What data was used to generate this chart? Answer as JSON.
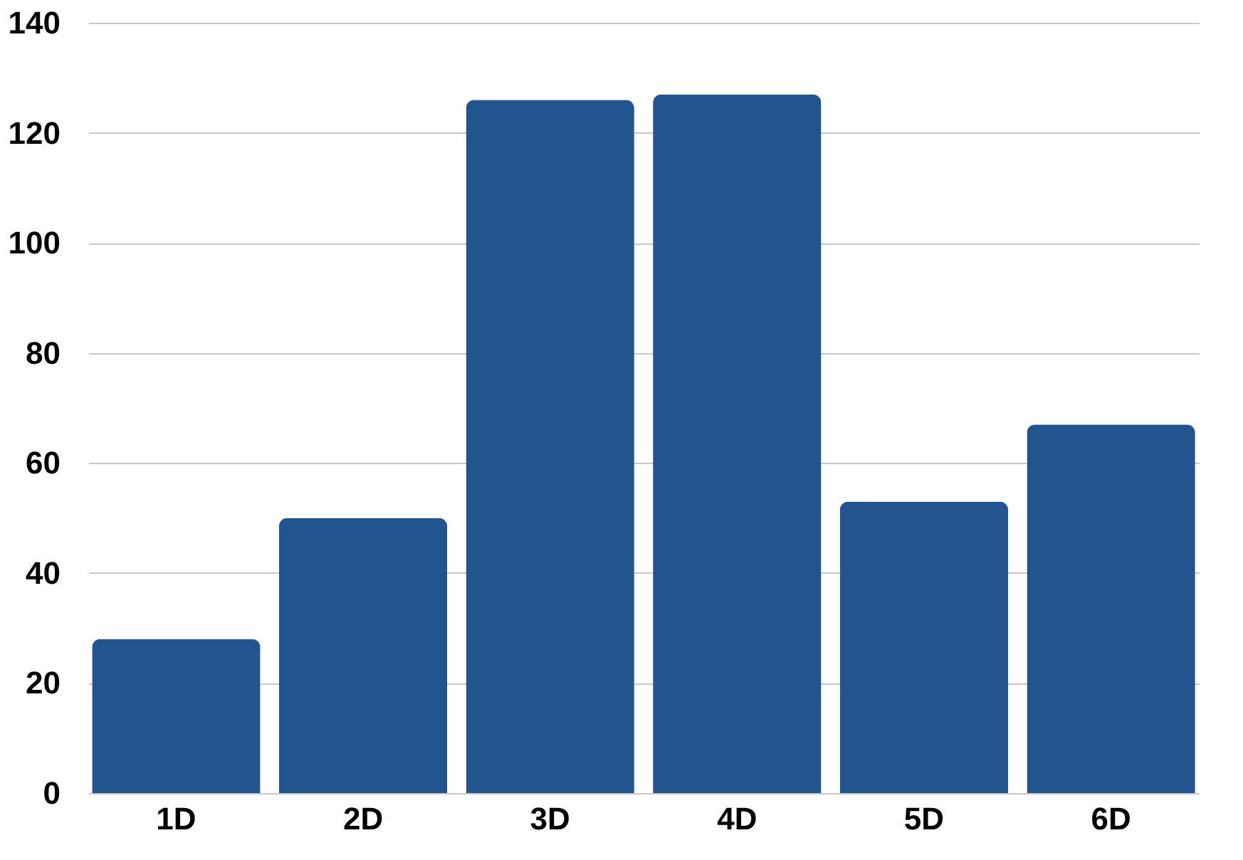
{
  "chart_data": {
    "type": "bar",
    "categories": [
      "1D",
      "2D",
      "3D",
      "4D",
      "5D",
      "6D"
    ],
    "values": [
      28,
      50,
      126,
      127,
      53,
      67
    ],
    "color": "#22548f",
    "ylim": [
      0,
      140
    ],
    "yticks": [
      0,
      20,
      40,
      60,
      80,
      100,
      120,
      140
    ],
    "grid": "y"
  }
}
